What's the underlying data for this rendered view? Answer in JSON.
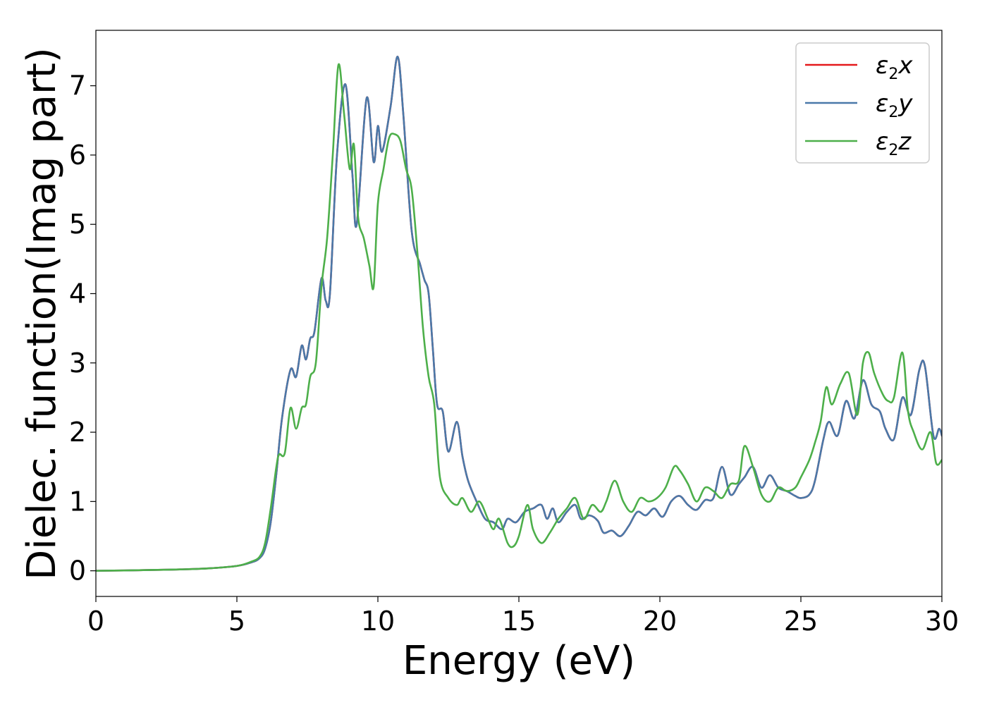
{
  "chart_data": {
    "type": "line",
    "title": "",
    "xlabel": "Energy (eV)",
    "ylabel": "Dielec. function(Imag part)",
    "xlim": [
      0,
      30
    ],
    "ylim": [
      -0.37,
      7.8
    ],
    "xticks": [
      0,
      5,
      10,
      15,
      20,
      25,
      30
    ],
    "yticks": [
      0,
      1,
      2,
      3,
      4,
      5,
      6,
      7
    ],
    "xtick_labels": [
      "0",
      "5",
      "10",
      "15",
      "20",
      "25",
      "30"
    ],
    "ytick_labels": [
      "0",
      "1",
      "2",
      "3",
      "4",
      "5",
      "6",
      "7"
    ],
    "grid": false,
    "legend_placement": "top-right",
    "series": [
      {
        "name": "ε2x",
        "legend_base": "ε",
        "legend_sub": "2",
        "legend_var": "x",
        "color": "#e41a1c",
        "x": [
          0,
          1,
          2,
          3,
          4,
          5,
          5.5,
          5.8,
          6.0,
          6.2,
          6.4,
          6.6,
          6.9,
          7.1,
          7.3,
          7.45,
          7.6,
          7.75,
          8.0,
          8.15,
          8.3,
          8.55,
          8.85,
          9.1,
          9.25,
          9.6,
          9.85,
          10.0,
          10.15,
          10.45,
          10.7,
          10.9,
          11.2,
          11.5,
          11.65,
          11.8,
          11.95,
          12.1,
          12.3,
          12.5,
          12.8,
          13.0,
          13.2,
          13.5,
          13.8,
          14.1,
          14.4,
          14.6,
          14.9,
          15.2,
          15.5,
          15.8,
          16.0,
          16.2,
          16.4,
          16.7,
          17.0,
          17.2,
          17.5,
          17.8,
          18.0,
          18.3,
          18.6,
          18.9,
          19.2,
          19.5,
          19.8,
          20.1,
          20.4,
          20.7,
          21.0,
          21.3,
          21.6,
          21.9,
          22.2,
          22.5,
          22.8,
          23.0,
          23.3,
          23.6,
          23.9,
          24.2,
          24.5,
          24.8,
          25.0,
          25.3,
          25.5,
          25.8,
          26.0,
          26.3,
          26.6,
          26.9,
          27.2,
          27.5,
          27.8,
          28.0,
          28.3,
          28.6,
          28.9,
          29.2,
          29.4,
          29.7,
          29.9,
          30.0
        ],
        "y": [
          0.0,
          0.005,
          0.012,
          0.02,
          0.035,
          0.07,
          0.12,
          0.18,
          0.32,
          0.7,
          1.4,
          2.2,
          2.9,
          2.8,
          3.25,
          3.05,
          3.35,
          3.45,
          4.22,
          3.9,
          4.0,
          6.0,
          7.02,
          5.7,
          5.0,
          6.82,
          5.9,
          6.42,
          6.05,
          6.7,
          7.42,
          6.6,
          4.9,
          4.42,
          4.2,
          4.0,
          3.2,
          2.4,
          2.3,
          1.72,
          2.15,
          1.65,
          1.3,
          1.0,
          0.75,
          0.7,
          0.6,
          0.75,
          0.7,
          0.85,
          0.9,
          0.95,
          0.75,
          0.9,
          0.7,
          0.85,
          0.95,
          0.75,
          0.8,
          0.72,
          0.55,
          0.58,
          0.5,
          0.65,
          0.85,
          0.8,
          0.9,
          0.78,
          1.0,
          1.08,
          0.95,
          0.88,
          1.02,
          1.05,
          1.5,
          1.1,
          1.25,
          1.35,
          1.5,
          1.2,
          1.38,
          1.2,
          1.15,
          1.08,
          1.05,
          1.1,
          1.3,
          1.9,
          2.15,
          1.95,
          2.45,
          2.2,
          2.75,
          2.4,
          2.3,
          2.05,
          1.9,
          2.5,
          2.25,
          2.9,
          2.95,
          1.95,
          2.05,
          1.95
        ]
      },
      {
        "name": "ε2y",
        "legend_base": "ε",
        "legend_sub": "2",
        "legend_var": "y",
        "color": "#4a79a9",
        "x": [
          0,
          1,
          2,
          3,
          4,
          5,
          5.5,
          5.8,
          6.0,
          6.2,
          6.4,
          6.6,
          6.9,
          7.1,
          7.3,
          7.45,
          7.6,
          7.75,
          8.0,
          8.15,
          8.3,
          8.55,
          8.85,
          9.1,
          9.25,
          9.6,
          9.85,
          10.0,
          10.15,
          10.45,
          10.7,
          10.9,
          11.2,
          11.5,
          11.65,
          11.8,
          11.95,
          12.1,
          12.3,
          12.5,
          12.8,
          13.0,
          13.2,
          13.5,
          13.8,
          14.1,
          14.4,
          14.6,
          14.9,
          15.2,
          15.5,
          15.8,
          16.0,
          16.2,
          16.4,
          16.7,
          17.0,
          17.2,
          17.5,
          17.8,
          18.0,
          18.3,
          18.6,
          18.9,
          19.2,
          19.5,
          19.8,
          20.1,
          20.4,
          20.7,
          21.0,
          21.3,
          21.6,
          21.9,
          22.2,
          22.5,
          22.8,
          23.0,
          23.3,
          23.6,
          23.9,
          24.2,
          24.5,
          24.8,
          25.0,
          25.3,
          25.5,
          25.8,
          26.0,
          26.3,
          26.6,
          26.9,
          27.2,
          27.5,
          27.8,
          28.0,
          28.3,
          28.6,
          28.9,
          29.2,
          29.4,
          29.7,
          29.9,
          30.0
        ],
        "y": [
          0.0,
          0.005,
          0.012,
          0.02,
          0.035,
          0.07,
          0.12,
          0.18,
          0.32,
          0.7,
          1.4,
          2.2,
          2.9,
          2.8,
          3.25,
          3.05,
          3.35,
          3.45,
          4.22,
          3.9,
          4.0,
          6.0,
          7.02,
          5.7,
          5.0,
          6.82,
          5.9,
          6.42,
          6.05,
          6.7,
          7.42,
          6.6,
          4.9,
          4.42,
          4.2,
          4.0,
          3.2,
          2.4,
          2.3,
          1.72,
          2.15,
          1.65,
          1.3,
          1.0,
          0.75,
          0.7,
          0.6,
          0.75,
          0.7,
          0.85,
          0.9,
          0.95,
          0.75,
          0.9,
          0.7,
          0.85,
          0.95,
          0.75,
          0.8,
          0.72,
          0.55,
          0.58,
          0.5,
          0.65,
          0.85,
          0.8,
          0.9,
          0.78,
          1.0,
          1.08,
          0.95,
          0.88,
          1.02,
          1.05,
          1.5,
          1.1,
          1.25,
          1.35,
          1.5,
          1.2,
          1.38,
          1.2,
          1.15,
          1.08,
          1.05,
          1.1,
          1.3,
          1.9,
          2.15,
          1.95,
          2.45,
          2.2,
          2.75,
          2.4,
          2.3,
          2.05,
          1.9,
          2.5,
          2.25,
          2.9,
          2.95,
          1.95,
          2.05,
          1.95
        ]
      },
      {
        "name": "ε2z",
        "legend_base": "ε",
        "legend_sub": "2",
        "legend_var": "z",
        "color": "#4daf4a",
        "x": [
          0,
          1,
          2,
          3,
          4,
          5,
          5.5,
          5.8,
          6.0,
          6.2,
          6.4,
          6.5,
          6.7,
          6.9,
          7.1,
          7.3,
          7.45,
          7.6,
          7.8,
          8.0,
          8.2,
          8.4,
          8.6,
          8.8,
          9.0,
          9.15,
          9.3,
          9.5,
          9.7,
          9.85,
          10.0,
          10.2,
          10.4,
          10.6,
          10.8,
          11.0,
          11.2,
          11.4,
          11.6,
          11.8,
          12.0,
          12.2,
          12.5,
          12.8,
          13.0,
          13.3,
          13.6,
          13.9,
          14.1,
          14.3,
          14.6,
          14.8,
          15.0,
          15.3,
          15.5,
          15.8,
          16.1,
          16.4,
          16.7,
          17.0,
          17.3,
          17.6,
          17.9,
          18.1,
          18.4,
          18.7,
          19.0,
          19.3,
          19.6,
          19.9,
          20.2,
          20.5,
          20.7,
          21.0,
          21.3,
          21.6,
          21.9,
          22.2,
          22.5,
          22.8,
          23.0,
          23.3,
          23.6,
          23.9,
          24.2,
          24.5,
          24.8,
          25.0,
          25.3,
          25.5,
          25.7,
          25.9,
          26.1,
          26.4,
          26.7,
          27.0,
          27.2,
          27.4,
          27.6,
          27.9,
          28.1,
          28.3,
          28.6,
          28.8,
          29.0,
          29.3,
          29.6,
          29.8,
          30.0
        ],
        "y": [
          0.0,
          0.005,
          0.012,
          0.02,
          0.035,
          0.07,
          0.13,
          0.2,
          0.4,
          0.9,
          1.5,
          1.68,
          1.7,
          2.35,
          2.05,
          2.35,
          2.4,
          2.8,
          3.0,
          4.1,
          4.8,
          6.0,
          7.3,
          6.6,
          5.8,
          6.15,
          5.1,
          4.8,
          4.4,
          4.1,
          5.3,
          5.8,
          6.25,
          6.3,
          6.2,
          5.8,
          5.5,
          4.6,
          3.5,
          2.8,
          2.4,
          1.35,
          1.05,
          0.95,
          1.05,
          0.85,
          1.0,
          0.75,
          0.6,
          0.75,
          0.4,
          0.35,
          0.5,
          0.95,
          0.6,
          0.4,
          0.55,
          0.75,
          0.9,
          1.05,
          0.75,
          0.95,
          0.85,
          1.0,
          1.3,
          1.0,
          0.85,
          1.05,
          1.0,
          1.05,
          1.2,
          1.5,
          1.45,
          1.25,
          1.0,
          1.2,
          1.15,
          1.05,
          1.25,
          1.3,
          1.8,
          1.5,
          1.1,
          1.0,
          1.2,
          1.15,
          1.2,
          1.35,
          1.6,
          1.85,
          2.15,
          2.65,
          2.4,
          2.7,
          2.85,
          2.25,
          3.0,
          3.15,
          2.85,
          2.55,
          2.45,
          2.5,
          3.15,
          2.3,
          2.0,
          1.75,
          2.0,
          1.55,
          1.6
        ]
      }
    ]
  }
}
